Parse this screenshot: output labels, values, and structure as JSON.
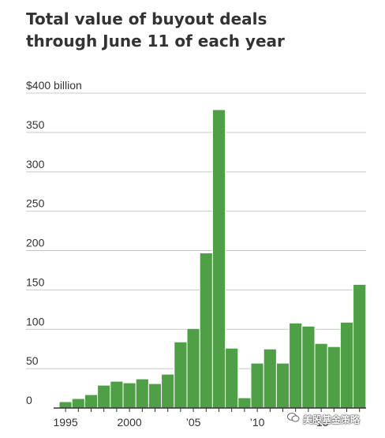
{
  "title_lines": [
    "Total value of buyout deals",
    "through June 11 of each year"
  ],
  "watermark": "美股基金策略",
  "colors": {
    "bar": "#4f9f46",
    "bar_edge": "#ffffff",
    "grid": "#c8c8c8",
    "axis": "#333333",
    "text": "#333333"
  },
  "chart_data": {
    "type": "bar",
    "title": "Total value of buyout deals through June 11 of each year",
    "xlabel": "",
    "ylabel": "",
    "ylim": [
      0,
      400
    ],
    "yticks": [
      0,
      50,
      100,
      150,
      200,
      250,
      300,
      350,
      400
    ],
    "ytick_labels": [
      "0",
      "50",
      "100",
      "150",
      "200",
      "250",
      "300",
      "350",
      "$400  billion"
    ],
    "x_tick_labels": [
      {
        "year": 1995,
        "label": "1995"
      },
      {
        "year": 2000,
        "label": "2000"
      },
      {
        "year": 2005,
        "label": "’05"
      },
      {
        "year": 2010,
        "label": "’10"
      },
      {
        "year": 2015,
        "label": "’15"
      }
    ],
    "categories": [
      1995,
      1996,
      1997,
      1998,
      1999,
      2000,
      2001,
      2002,
      2003,
      2004,
      2005,
      2006,
      2007,
      2008,
      2009,
      2010,
      2011,
      2012,
      2013,
      2014,
      2015,
      2016,
      2017,
      2018
    ],
    "values": [
      8,
      12,
      17,
      29,
      34,
      32,
      37,
      31,
      43,
      84,
      101,
      197,
      379,
      76,
      13,
      57,
      75,
      57,
      108,
      104,
      82,
      78,
      109,
      157
    ],
    "grid": true,
    "legend": "none"
  }
}
